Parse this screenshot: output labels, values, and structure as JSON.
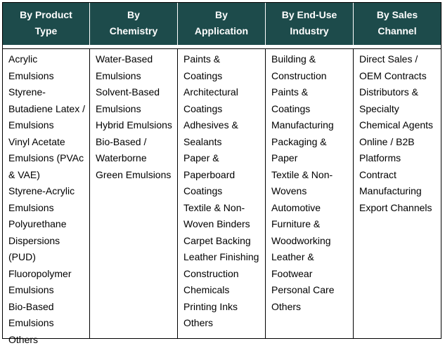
{
  "table": {
    "headers": [
      "By Product Type",
      "By Chemistry",
      "By Application",
      "By End-Use Industry",
      "By Sales Channel"
    ],
    "columns": [
      [
        "Acrylic Emulsions",
        "Styrene-Butadiene Latex / Emulsions",
        "Vinyl Acetate Emulsions (PVAc & VAE)",
        "Styrene-Acrylic Emulsions",
        "Polyurethane Dispersions (PUD)",
        "Fluoropolymer Emulsions",
        "Bio-Based Emulsions",
        "Others"
      ],
      [
        "Water-Based Emulsions",
        "Solvent-Based Emulsions",
        "Hybrid Emulsions",
        "Bio-Based / Waterborne",
        "Green Emulsions"
      ],
      [
        "Paints & Coatings",
        "Architectural Coatings",
        "Adhesives & Sealants",
        "Paper & Paperboard Coatings",
        "Textile & Non-Woven Binders",
        "Carpet Backing",
        "Leather Finishing",
        "Construction Chemicals",
        "Printing Inks",
        "Others"
      ],
      [
        "Building & Construction",
        "Paints & Coatings",
        "Manufacturing",
        "Packaging & Paper",
        "Textile & Non-Wovens",
        "Automotive",
        "Furniture & Woodworking",
        "Leather & Footwear",
        "Personal Care",
        "Others"
      ],
      [
        "Direct Sales / OEM Contracts",
        "Distributors & Specialty Chemical Agents",
        "Online / B2B Platforms",
        "Contract Manufacturing",
        "Export Channels"
      ]
    ]
  }
}
